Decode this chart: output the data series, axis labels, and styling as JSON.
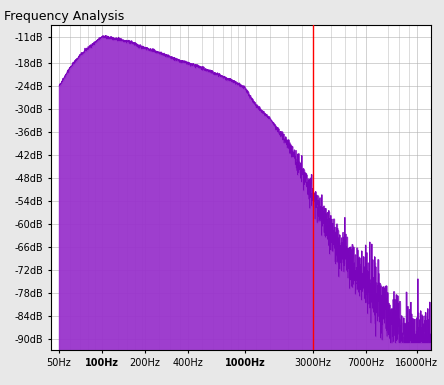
{
  "title": "Frequency Analysis",
  "bg_color": "#e8e8e8",
  "plot_bg_color": "#ffffff",
  "fill_color": "#9933cc",
  "fill_alpha": 0.95,
  "line_color": "#7700bb",
  "red_line_freq": 3000,
  "x_ticks": [
    50,
    100,
    200,
    400,
    1000,
    3000,
    7000,
    16000
  ],
  "x_tick_labels": [
    "50Hz",
    "100Hz",
    "200Hz",
    "400Hz",
    "1000Hz",
    "3000Hz",
    "7000Hz",
    "16000Hz"
  ],
  "x_bold_labels": [
    "100Hz",
    "1000Hz"
  ],
  "y_ticks": [
    -11,
    -18,
    -24,
    -30,
    -36,
    -42,
    -48,
    -54,
    -60,
    -66,
    -72,
    -78,
    -84,
    -90
  ],
  "y_tick_labels": [
    "-11dB",
    "-18dB",
    "-24dB",
    "-30dB",
    "-36dB",
    "-42dB",
    "-48dB",
    "-54dB",
    "-60dB",
    "-66dB",
    "-72dB",
    "-78dB",
    "-84dB",
    "-90dB"
  ],
  "ylim": [
    -93,
    -8
  ],
  "xlim_hz": [
    44,
    20000
  ],
  "freqs_hz": [
    50,
    60,
    70,
    80,
    90,
    100,
    120,
    140,
    160,
    180,
    200,
    220,
    240,
    260,
    280,
    300,
    330,
    360,
    400,
    440,
    480,
    520,
    560,
    600,
    650,
    700,
    750,
    800,
    850,
    900,
    950,
    1000,
    1100,
    1200,
    1300,
    1400,
    1500,
    1600,
    1700,
    1800,
    2000,
    2200,
    2400,
    2600,
    2800,
    3000,
    3200,
    3400,
    3600,
    3800,
    4000,
    4500,
    5000,
    5500,
    6000,
    7000,
    8000,
    9000,
    10000,
    12000,
    14000,
    16000,
    18000,
    20000
  ],
  "amplitudes": [
    -24,
    -19,
    -16,
    -14,
    -12.5,
    -11,
    -11.5,
    -12,
    -12.5,
    -13.5,
    -14,
    -14.5,
    -15,
    -15.5,
    -16,
    -16.5,
    -17,
    -17.5,
    -18,
    -18.5,
    -19,
    -19.5,
    -20,
    -20.5,
    -21,
    -21.5,
    -22,
    -22.5,
    -23,
    -23.5,
    -24,
    -24.5,
    -27,
    -29,
    -30.5,
    -31.5,
    -32.5,
    -34,
    -35.5,
    -36.5,
    -39,
    -42,
    -45,
    -47.5,
    -50,
    -53,
    -55,
    -57,
    -59,
    -61,
    -63,
    -66,
    -68,
    -70,
    -72,
    -75,
    -78,
    -81,
    -84,
    -87,
    -89,
    -90,
    -90,
    -90
  ],
  "noise_seed": 42,
  "grid_color": "#b0b0b0",
  "grid_linewidth": 0.5,
  "spine_color": "#000000"
}
